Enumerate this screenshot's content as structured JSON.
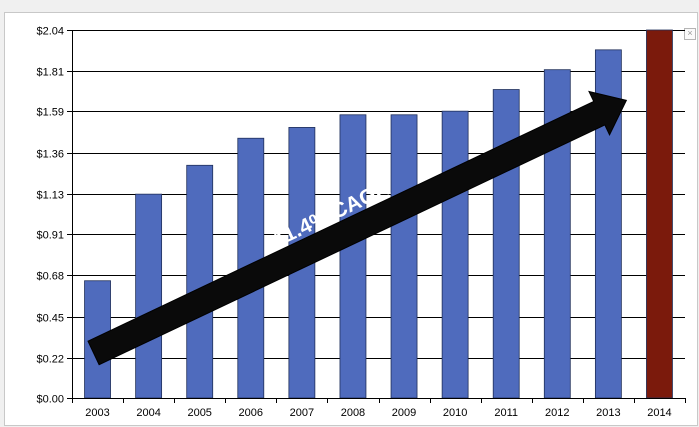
{
  "chart_data": {
    "type": "bar",
    "title": "",
    "xlabel": "",
    "ylabel": "",
    "categories": [
      "2003",
      "2004",
      "2005",
      "2006",
      "2007",
      "2008",
      "2009",
      "2010",
      "2011",
      "2012",
      "2013",
      "2014"
    ],
    "values": [
      0.65,
      1.13,
      1.29,
      1.44,
      1.5,
      1.57,
      1.57,
      1.59,
      1.71,
      1.82,
      1.93,
      2.04
    ],
    "bar_colors": [
      "#4f6bbd",
      "#4f6bbd",
      "#4f6bbd",
      "#4f6bbd",
      "#4f6bbd",
      "#4f6bbd",
      "#4f6bbd",
      "#4f6bbd",
      "#4f6bbd",
      "#4f6bbd",
      "#4f6bbd",
      "#7b1a0c"
    ],
    "yticks": [
      0.0,
      0.22,
      0.45,
      0.68,
      0.91,
      1.13,
      1.36,
      1.59,
      1.81,
      2.04
    ],
    "ytick_labels": [
      "$0.00",
      "$0.22",
      "$0.45",
      "$0.68",
      "$0.91",
      "$1.13",
      "$1.36",
      "$1.59",
      "$1.81",
      "$2.04"
    ],
    "ylim": [
      0,
      2.04
    ],
    "grid": true,
    "annotation": {
      "text": "11.4% CAGR",
      "from": {
        "x": "2003",
        "y": 0.25
      },
      "to": {
        "x": "2013",
        "y": 1.65
      }
    }
  },
  "window": {
    "close_glyph": "×"
  }
}
